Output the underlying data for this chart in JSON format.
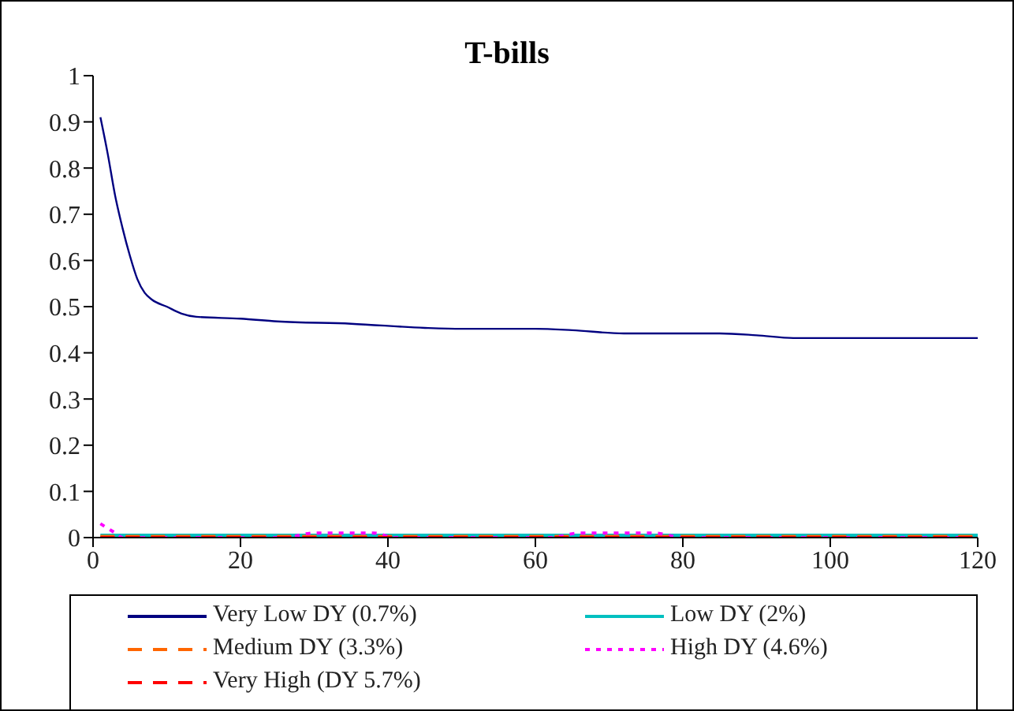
{
  "chart_data": {
    "type": "line",
    "title": "T-bills",
    "xlim": [
      0,
      120
    ],
    "xticks": [
      0,
      20,
      40,
      60,
      80,
      100,
      120
    ],
    "ylim": [
      0,
      1
    ],
    "yticks": [
      0,
      0.1,
      0.2,
      0.3,
      0.4,
      0.5,
      0.6,
      0.7,
      0.8,
      0.9,
      1
    ],
    "grid": false,
    "legend": "bottom",
    "marker": "none",
    "series": [
      {
        "name": "Very Low DY (0.7%)",
        "color": "#000080",
        "line_style": "solid",
        "x": [
          1,
          2,
          3,
          4,
          5,
          6,
          7,
          8,
          10,
          12,
          14,
          20,
          25,
          35,
          45,
          50,
          60,
          65,
          72,
          85,
          90,
          95,
          120
        ],
        "values": [
          0.91,
          0.83,
          0.74,
          0.67,
          0.61,
          0.56,
          0.53,
          0.515,
          0.5,
          0.485,
          0.478,
          0.474,
          0.468,
          0.463,
          0.454,
          0.452,
          0.452,
          0.449,
          0.442,
          0.442,
          0.438,
          0.432,
          0.432
        ]
      },
      {
        "name": "Low DY (2%)",
        "color": "#00c0c0",
        "line_style": "solid",
        "x": [
          1,
          120
        ],
        "values": [
          0,
          0
        ]
      },
      {
        "name": "Medium DY (3.3%)",
        "color": "#ff6600",
        "line_style": "dashed",
        "x": [
          1,
          120
        ],
        "values": [
          0,
          0
        ]
      },
      {
        "name": "High DY (4.6%)",
        "color": "#ff00ff",
        "line_style": "dotted",
        "x": [
          1,
          2,
          3,
          4,
          26,
          30,
          35,
          38,
          41,
          62,
          66,
          72,
          76,
          80,
          120
        ],
        "values": [
          0.03,
          0.02,
          0.01,
          0,
          0,
          0.01,
          0.01,
          0.01,
          0,
          0,
          0.01,
          0.01,
          0.01,
          0,
          0
        ]
      },
      {
        "name": "Very High (DY 5.7%)",
        "color": "#ff0000",
        "line_style": "dashed",
        "x": [
          1,
          120
        ],
        "values": [
          0,
          0
        ]
      }
    ]
  }
}
